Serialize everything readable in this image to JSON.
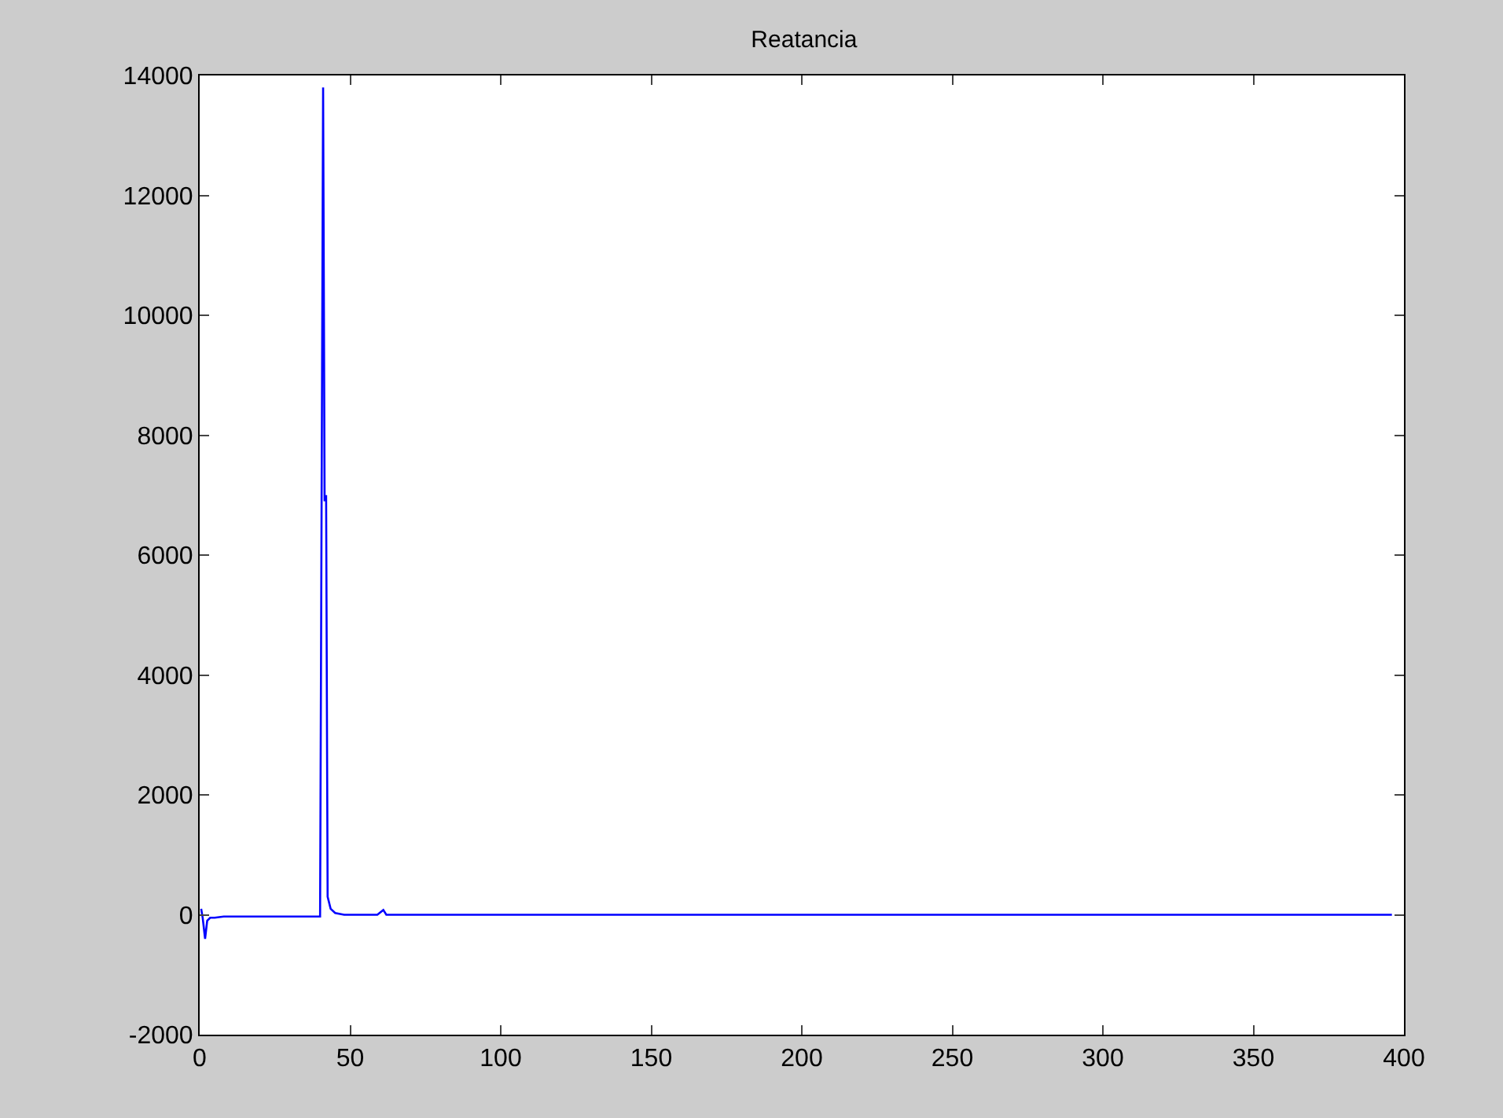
{
  "chart_data": {
    "type": "line",
    "title": "Reatancia",
    "x": [
      0.5,
      1,
      1.8,
      2.5,
      3.5,
      5,
      8,
      40,
      40.5,
      41,
      41.5,
      42,
      42.5,
      43.5,
      45,
      48,
      59,
      61,
      62,
      396
    ],
    "series": [
      {
        "color": "#0000ff",
        "values": [
          100,
          -50,
          -400,
          -100,
          -50,
          -50,
          -30,
          -30,
          6900,
          13800,
          6900,
          7000,
          300,
          100,
          30,
          0,
          0,
          80,
          0,
          0
        ]
      }
    ],
    "xlim": [
      0,
      400
    ],
    "xticks": [
      0,
      50,
      100,
      150,
      200,
      250,
      300,
      350,
      400
    ],
    "ylim": [
      -2000,
      14000
    ],
    "yticks": [
      -2000,
      0,
      2000,
      4000,
      6000,
      8000,
      10000,
      12000,
      14000
    ]
  }
}
